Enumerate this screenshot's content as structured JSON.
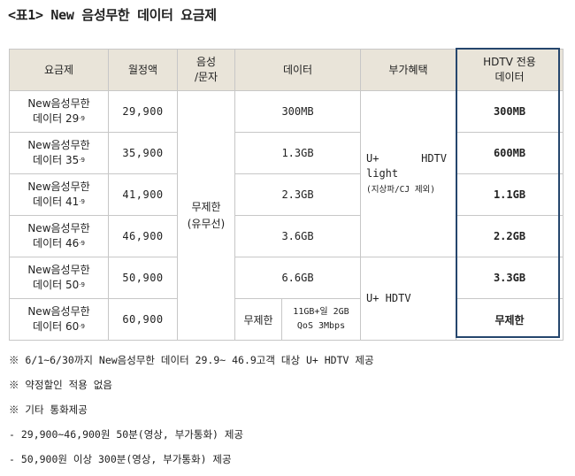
{
  "title": "<표1> New 음성무한 데이터 요금제",
  "headers": {
    "plan": "요금제",
    "price": "월정액",
    "voice_line1": "음성",
    "voice_line2": "/문자",
    "data": "데이터",
    "extra": "부가혜택",
    "hdtv_line1": "HDTV 전용",
    "hdtv_line2": "데이터"
  },
  "rows": [
    {
      "plan_line1": "New음성무한",
      "plan_line2": "데이터 29",
      "plan_sup": "·9",
      "price": "29,900",
      "data": "300MB",
      "hdtv": "300MB"
    },
    {
      "plan_line1": "New음성무한",
      "plan_line2": "데이터 35",
      "plan_sup": "·9",
      "price": "35,900",
      "data": "1.3GB",
      "hdtv": "600MB"
    },
    {
      "plan_line1": "New음성무한",
      "plan_line2": "데이터 41",
      "plan_sup": "·9",
      "price": "41,900",
      "data": "2.3GB",
      "hdtv": "1.1GB"
    },
    {
      "plan_line1": "New음성무한",
      "plan_line2": "데이터 46",
      "plan_sup": "·9",
      "price": "46,900",
      "data": "3.6GB",
      "hdtv": "2.2GB"
    },
    {
      "plan_line1": "New음성무한",
      "plan_line2": "데이터 50",
      "plan_sup": "·9",
      "price": "50,900",
      "data": "6.6GB",
      "hdtv": "3.3GB"
    },
    {
      "plan_line1": "New음성무한",
      "plan_line2": "데이터 60",
      "plan_sup": "·9",
      "price": "60,900",
      "data_unlimited": "무제한",
      "data_qos_line1": "11GB+일 2GB",
      "data_qos_line2": "QoS 3Mbps",
      "hdtv": "무제한"
    }
  ],
  "voice": {
    "line1": "무제한",
    "line2": "(유무선)"
  },
  "extra_light": {
    "left": "U+",
    "right": "HDTV",
    "line2": "light",
    "line3": "(지상파/CJ 제외)"
  },
  "extra_full": "U+ HDTV",
  "notes": [
    "※ 6/1~6/30까지 New음성무한 데이터 29.9~ 46.9고객 대상 U+ HDTV 제공",
    "※ 약정할인 적용 없음",
    "※ 기타 통화제공",
    " - 29,900~46,900원 50분(영상, 부가통화) 제공",
    " - 50,900원 이상 300분(영상, 부가통화) 제공"
  ]
}
